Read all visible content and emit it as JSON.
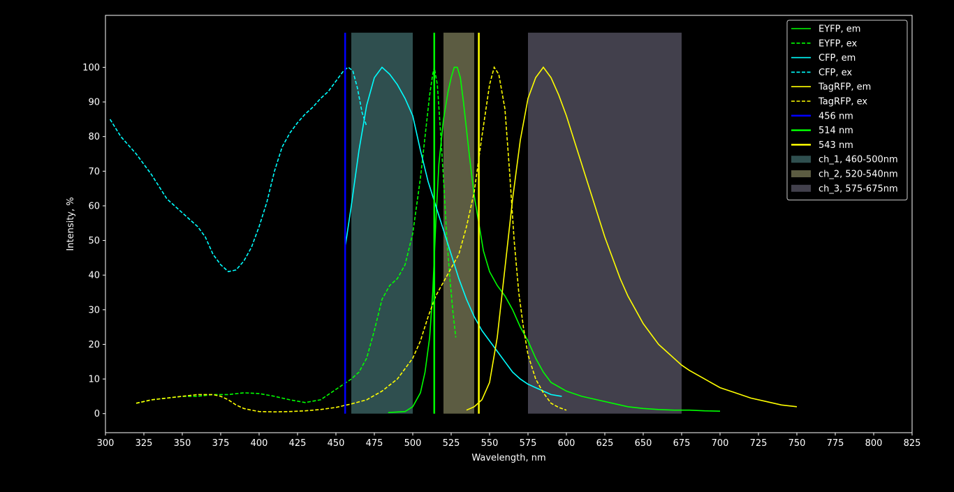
{
  "chart_data": {
    "type": "line",
    "title": "",
    "xlabel": "Wavelength, nm",
    "ylabel": "Intensity, %",
    "xlim": [
      300,
      825
    ],
    "ylim": [
      -5.5,
      115
    ],
    "xticks": [
      300,
      325,
      350,
      375,
      400,
      425,
      450,
      475,
      500,
      525,
      550,
      575,
      600,
      625,
      650,
      675,
      700,
      725,
      750,
      775,
      800,
      825
    ],
    "yticks": [
      0,
      10,
      20,
      30,
      40,
      50,
      60,
      70,
      80,
      90,
      100
    ],
    "grid": false,
    "legend_position": "top-right",
    "bands": [
      {
        "name": "ch_1, 460-500nm",
        "x0": 460,
        "x1": 500,
        "y0": 0,
        "y1": 110,
        "color": "#2f4f4f"
      },
      {
        "name": "ch_2, 520-540nm",
        "x0": 520,
        "x1": 540,
        "y0": 0,
        "y1": 110,
        "color": "#5c5c42"
      },
      {
        "name": "ch_3, 575-675nm",
        "x0": 575,
        "x1": 675,
        "y0": 0,
        "y1": 110,
        "color": "#42404c"
      }
    ],
    "vlines": [
      {
        "name": "456 nm",
        "x": 456,
        "y0": 0,
        "y1": 110,
        "color": "#0000ff"
      },
      {
        "name": "514 nm",
        "x": 514,
        "y0": 0,
        "y1": 110,
        "color": "#00ff00"
      },
      {
        "name": "543 nm",
        "x": 543,
        "y0": 0,
        "y1": 110,
        "color": "#ffff00"
      }
    ],
    "series": [
      {
        "name": "EYFP, em",
        "color": "#00ff00",
        "dash": false,
        "points": [
          [
            484,
            0.3
          ],
          [
            495,
            0.6
          ],
          [
            500,
            2
          ],
          [
            505,
            6
          ],
          [
            508,
            12
          ],
          [
            511,
            22
          ],
          [
            513,
            35
          ],
          [
            515,
            55
          ],
          [
            517,
            72
          ],
          [
            520,
            85
          ],
          [
            523,
            93
          ],
          [
            525,
            97
          ],
          [
            527,
            100
          ],
          [
            529,
            100
          ],
          [
            531,
            97
          ],
          [
            533,
            90
          ],
          [
            535,
            82
          ],
          [
            537,
            74
          ],
          [
            540,
            63
          ],
          [
            543,
            55
          ],
          [
            546,
            47
          ],
          [
            550,
            41
          ],
          [
            555,
            37
          ],
          [
            560,
            34
          ],
          [
            565,
            30
          ],
          [
            570,
            25
          ],
          [
            575,
            21
          ],
          [
            580,
            16
          ],
          [
            585,
            12
          ],
          [
            590,
            9
          ],
          [
            600,
            6.5
          ],
          [
            610,
            5
          ],
          [
            620,
            4
          ],
          [
            630,
            3
          ],
          [
            640,
            2
          ],
          [
            650,
            1.5
          ],
          [
            660,
            1.2
          ],
          [
            670,
            1
          ],
          [
            680,
            1
          ],
          [
            690,
            0.8
          ],
          [
            700,
            0.7
          ]
        ]
      },
      {
        "name": "EYFP, ex",
        "color": "#00ff00",
        "dash": true,
        "points": [
          [
            320,
            3
          ],
          [
            330,
            4
          ],
          [
            340,
            4.5
          ],
          [
            350,
            5
          ],
          [
            360,
            5
          ],
          [
            370,
            5.5
          ],
          [
            380,
            5.5
          ],
          [
            390,
            6
          ],
          [
            400,
            5.8
          ],
          [
            410,
            5
          ],
          [
            420,
            4
          ],
          [
            430,
            3.2
          ],
          [
            440,
            4
          ],
          [
            450,
            7
          ],
          [
            460,
            10
          ],
          [
            465,
            12
          ],
          [
            470,
            16
          ],
          [
            475,
            24
          ],
          [
            480,
            33
          ],
          [
            485,
            37
          ],
          [
            490,
            39
          ],
          [
            495,
            43
          ],
          [
            500,
            52
          ],
          [
            505,
            68
          ],
          [
            508,
            80
          ],
          [
            511,
            92
          ],
          [
            513,
            98
          ],
          [
            514,
            100
          ],
          [
            516,
            95
          ],
          [
            518,
            82
          ],
          [
            520,
            68
          ],
          [
            522,
            52
          ],
          [
            524,
            40
          ],
          [
            526,
            30
          ],
          [
            528,
            22
          ]
        ]
      },
      {
        "name": "CFP, em",
        "color": "#00ffff",
        "dash": false,
        "points": [
          [
            456,
            48
          ],
          [
            460,
            60
          ],
          [
            465,
            76
          ],
          [
            470,
            89
          ],
          [
            475,
            97
          ],
          [
            480,
            100
          ],
          [
            485,
            98
          ],
          [
            490,
            95
          ],
          [
            495,
            91
          ],
          [
            500,
            86
          ],
          [
            505,
            76
          ],
          [
            510,
            67
          ],
          [
            515,
            60
          ],
          [
            520,
            53
          ],
          [
            525,
            46
          ],
          [
            530,
            39
          ],
          [
            535,
            33
          ],
          [
            540,
            28
          ],
          [
            545,
            24
          ],
          [
            550,
            21
          ],
          [
            555,
            18
          ],
          [
            560,
            15
          ],
          [
            565,
            12
          ],
          [
            570,
            10
          ],
          [
            575,
            8.5
          ],
          [
            580,
            7.5
          ],
          [
            585,
            6.5
          ],
          [
            590,
            5.5
          ],
          [
            597,
            5
          ]
        ]
      },
      {
        "name": "CFP, ex",
        "color": "#00ffff",
        "dash": true,
        "points": [
          [
            303,
            85
          ],
          [
            310,
            80
          ],
          [
            320,
            75
          ],
          [
            325,
            72
          ],
          [
            330,
            69
          ],
          [
            340,
            62
          ],
          [
            350,
            58
          ],
          [
            360,
            54
          ],
          [
            365,
            51
          ],
          [
            370,
            46
          ],
          [
            375,
            43
          ],
          [
            380,
            41
          ],
          [
            385,
            41.5
          ],
          [
            390,
            44
          ],
          [
            395,
            48
          ],
          [
            400,
            54
          ],
          [
            405,
            61
          ],
          [
            410,
            70
          ],
          [
            415,
            77
          ],
          [
            420,
            81
          ],
          [
            425,
            84
          ],
          [
            430,
            86.5
          ],
          [
            435,
            88.5
          ],
          [
            440,
            91
          ],
          [
            445,
            93
          ],
          [
            450,
            96
          ],
          [
            455,
            99
          ],
          [
            458,
            100
          ],
          [
            461,
            99
          ],
          [
            464,
            94
          ],
          [
            467,
            87
          ],
          [
            470,
            83
          ]
        ]
      },
      {
        "name": "TagRFP, em",
        "color": "#ffff00",
        "dash": false,
        "points": [
          [
            535,
            1
          ],
          [
            540,
            2
          ],
          [
            545,
            4
          ],
          [
            550,
            9
          ],
          [
            555,
            22
          ],
          [
            560,
            42
          ],
          [
            565,
            62
          ],
          [
            570,
            79
          ],
          [
            575,
            91
          ],
          [
            580,
            97
          ],
          [
            585,
            100
          ],
          [
            590,
            97
          ],
          [
            595,
            92
          ],
          [
            600,
            86
          ],
          [
            605,
            79
          ],
          [
            610,
            72
          ],
          [
            615,
            65
          ],
          [
            620,
            58
          ],
          [
            625,
            51
          ],
          [
            630,
            45
          ],
          [
            635,
            39
          ],
          [
            640,
            34
          ],
          [
            645,
            30
          ],
          [
            650,
            26
          ],
          [
            655,
            23
          ],
          [
            660,
            20
          ],
          [
            665,
            18
          ],
          [
            670,
            16
          ],
          [
            675,
            14
          ],
          [
            680,
            12.5
          ],
          [
            690,
            10
          ],
          [
            700,
            7.5
          ],
          [
            710,
            6
          ],
          [
            720,
            4.5
          ],
          [
            730,
            3.5
          ],
          [
            740,
            2.5
          ],
          [
            750,
            2
          ]
        ]
      },
      {
        "name": "TagRFP, ex",
        "color": "#ffff00",
        "dash": true,
        "points": [
          [
            320,
            3
          ],
          [
            330,
            4
          ],
          [
            340,
            4.5
          ],
          [
            350,
            5
          ],
          [
            360,
            5.5
          ],
          [
            370,
            5.5
          ],
          [
            375,
            5
          ],
          [
            380,
            4
          ],
          [
            385,
            2.5
          ],
          [
            390,
            1.5
          ],
          [
            395,
            1
          ],
          [
            400,
            0.6
          ],
          [
            410,
            0.5
          ],
          [
            420,
            0.6
          ],
          [
            430,
            0.8
          ],
          [
            440,
            1.2
          ],
          [
            450,
            1.8
          ],
          [
            460,
            2.8
          ],
          [
            470,
            4
          ],
          [
            480,
            6.5
          ],
          [
            490,
            10
          ],
          [
            500,
            16
          ],
          [
            505,
            21
          ],
          [
            510,
            28
          ],
          [
            515,
            34
          ],
          [
            520,
            38
          ],
          [
            525,
            42
          ],
          [
            530,
            46
          ],
          [
            535,
            54
          ],
          [
            540,
            64
          ],
          [
            545,
            80
          ],
          [
            550,
            95
          ],
          [
            553,
            100
          ],
          [
            556,
            98
          ],
          [
            560,
            88
          ],
          [
            563,
            70
          ],
          [
            566,
            50
          ],
          [
            569,
            35
          ],
          [
            572,
            25
          ],
          [
            575,
            17
          ],
          [
            580,
            10
          ],
          [
            585,
            6
          ],
          [
            590,
            3
          ],
          [
            595,
            1.8
          ],
          [
            600,
            1
          ]
        ]
      }
    ]
  }
}
